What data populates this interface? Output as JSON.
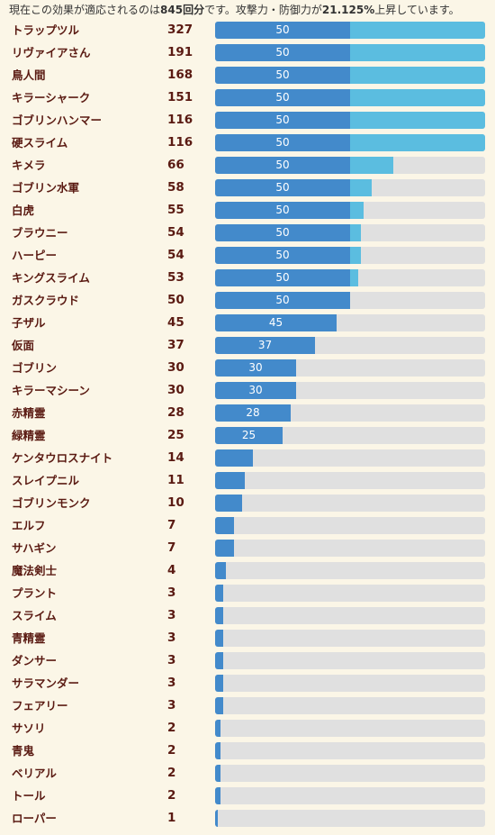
{
  "header": {
    "prefix": "現在この効果が適応されるのは",
    "total": "845回分",
    "middle": "です。攻撃力・防御力が",
    "percent": "21.125%",
    "suffix": "上昇しています。"
  },
  "colors": {
    "main_bar": "#438acb",
    "extra_bar": "#5bbde0",
    "track": "#e0e0e0",
    "name_text": "#5a1a12"
  },
  "chart_data": {
    "type": "bar",
    "orientation": "horizontal",
    "cap_value": 50,
    "max_value": 100,
    "categories": [
      "トラップツル",
      "リヴァイアさん",
      "鳥人間",
      "キラーシャーク",
      "ゴブリンハンマー",
      "硬スライム",
      "キメラ",
      "ゴブリン水軍",
      "白虎",
      "ブラウニー",
      "ハーピー",
      "キングスライム",
      "ガスクラウド",
      "子ザル",
      "仮面",
      "ゴブリン",
      "キラーマシーン",
      "赤精霊",
      "緑精霊",
      "ケンタウロスナイト",
      "スレイプニル",
      "ゴブリンモンク",
      "エルフ",
      "サハギン",
      "魔法剣士",
      "プラント",
      "スライム",
      "青精霊",
      "ダンサー",
      "サラマンダー",
      "フェアリー",
      "サソリ",
      "青鬼",
      "ベリアル",
      "トール",
      "ローパー"
    ],
    "values": [
      327,
      191,
      168,
      151,
      116,
      116,
      66,
      58,
      55,
      54,
      54,
      53,
      50,
      45,
      37,
      30,
      30,
      28,
      25,
      14,
      11,
      10,
      7,
      7,
      4,
      3,
      3,
      3,
      3,
      3,
      3,
      2,
      2,
      2,
      2,
      1
    ],
    "bar_labels": [
      "50",
      "50",
      "50",
      "50",
      "50",
      "50",
      "50",
      "50",
      "50",
      "50",
      "50",
      "50",
      "50",
      "45",
      "37",
      "30",
      "30",
      "28",
      "25",
      "",
      "",
      "",
      "",
      "",
      "",
      "",
      "",
      "",
      "",
      "",
      "",
      "",
      "",
      "",
      "",
      ""
    ]
  }
}
